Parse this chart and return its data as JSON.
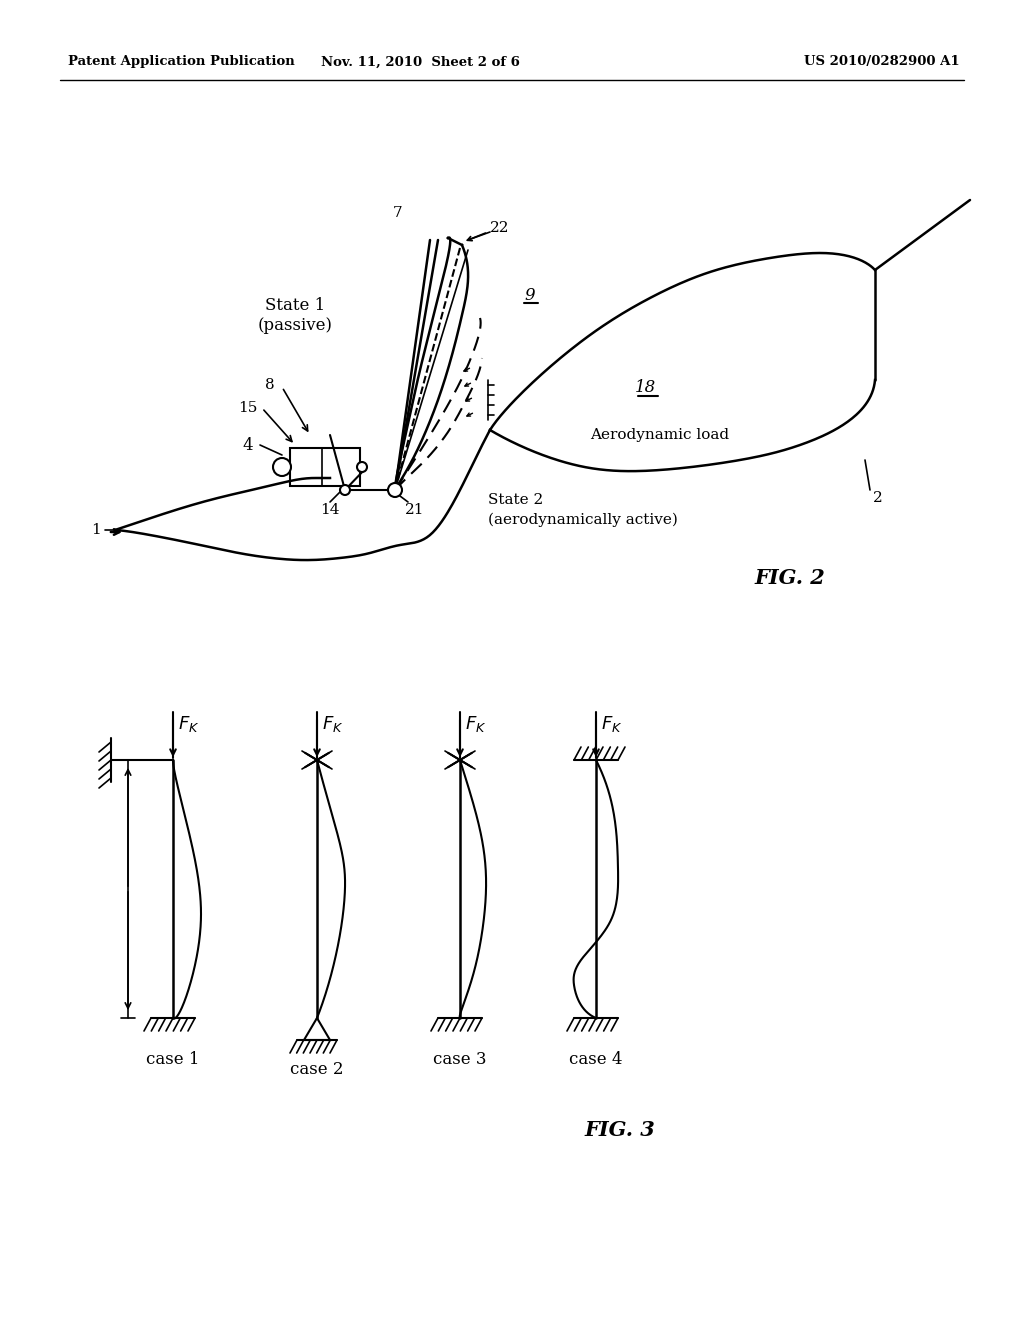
{
  "bg_color": "#ffffff",
  "header_left": "Patent Application Publication",
  "header_mid": "Nov. 11, 2010  Sheet 2 of 6",
  "header_right": "US 2010/0282900 A1",
  "fig2_label": "FIG. 2",
  "fig3_label": "FIG. 3"
}
